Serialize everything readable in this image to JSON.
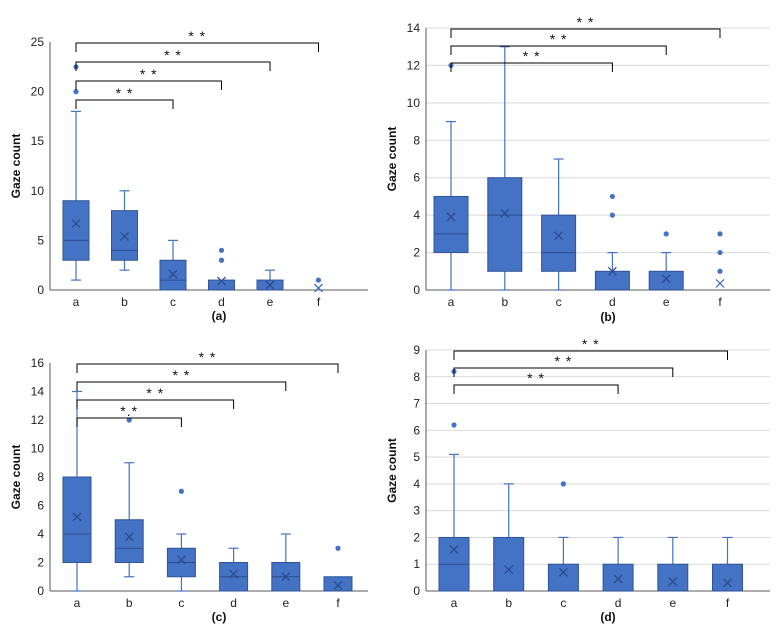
{
  "colors": {
    "box": "#4472C4",
    "box_edge": "#2F5597",
    "bracket": "#000000",
    "axis": "#595959",
    "grid": "#D9D9D9"
  },
  "chart_data": [
    {
      "type": "boxplot",
      "caption": "(a)",
      "ylabel": "Gaze count",
      "ylim": [
        0,
        25
      ],
      "ticks": [
        0,
        5,
        10,
        15,
        20,
        25
      ],
      "grid": false,
      "categories": [
        "a",
        "b",
        "c",
        "d",
        "e",
        "f"
      ],
      "boxes": [
        {
          "name": "a",
          "whisker_low": 1,
          "q1": 3,
          "median": 5,
          "q3": 9,
          "whisker_high": 18,
          "mean": 6.7,
          "outliers": [
            20,
            22.5
          ]
        },
        {
          "name": "b",
          "whisker_low": 2,
          "q1": 3,
          "median": 4,
          "q3": 8,
          "whisker_high": 10,
          "mean": 5.4,
          "outliers": []
        },
        {
          "name": "c",
          "whisker_low": 0,
          "q1": 0,
          "median": 1,
          "q3": 3,
          "whisker_high": 5,
          "mean": 1.6,
          "outliers": []
        },
        {
          "name": "d",
          "whisker_low": 0,
          "q1": 0,
          "median": 0,
          "q3": 1,
          "whisker_high": 1,
          "mean": 0.9,
          "outliers": [
            3,
            4
          ]
        },
        {
          "name": "e",
          "whisker_low": 0,
          "q1": 0,
          "median": 0,
          "q3": 1,
          "whisker_high": 2,
          "mean": 0.5,
          "outliers": []
        },
        {
          "name": "f",
          "whisker_low": 0,
          "q1": 0,
          "median": 0,
          "q3": 0,
          "whisker_high": 0,
          "mean": 0.2,
          "outliers": [
            1
          ]
        }
      ],
      "significance": [
        {
          "from": "a",
          "to": "c",
          "label": "* *"
        },
        {
          "from": "a",
          "to": "d",
          "label": "* *"
        },
        {
          "from": "a",
          "to": "e",
          "label": "* *"
        },
        {
          "from": "a",
          "to": "f",
          "label": "* *"
        }
      ]
    },
    {
      "type": "boxplot",
      "caption": "(b)",
      "ylabel": "Gaze count",
      "ylim": [
        0,
        14
      ],
      "ticks": [
        0,
        2,
        4,
        6,
        8,
        10,
        12,
        14
      ],
      "grid": true,
      "categories": [
        "a",
        "b",
        "c",
        "d",
        "e",
        "f"
      ],
      "boxes": [
        {
          "name": "a",
          "whisker_low": 0,
          "q1": 2,
          "median": 3,
          "q3": 5,
          "whisker_high": 9,
          "mean": 3.9,
          "outliers": [
            12
          ]
        },
        {
          "name": "b",
          "whisker_low": 0,
          "q1": 1,
          "median": 4,
          "q3": 6,
          "whisker_high": 13,
          "mean": 4.1,
          "outliers": []
        },
        {
          "name": "c",
          "whisker_low": 0,
          "q1": 1,
          "median": 2,
          "q3": 4,
          "whisker_high": 7,
          "mean": 2.9,
          "outliers": []
        },
        {
          "name": "d",
          "whisker_low": 0,
          "q1": 0,
          "median": 0,
          "q3": 1,
          "whisker_high": 2,
          "mean": 1,
          "outliers": [
            4,
            5
          ]
        },
        {
          "name": "e",
          "whisker_low": 0,
          "q1": 0,
          "median": 0,
          "q3": 1,
          "whisker_high": 2,
          "mean": 0.6,
          "outliers": [
            3
          ]
        },
        {
          "name": "f",
          "whisker_low": 0,
          "q1": 0,
          "median": 0,
          "q3": 0,
          "whisker_high": 0,
          "mean": 0.35,
          "outliers": [
            1,
            2,
            3
          ]
        }
      ],
      "significance": [
        {
          "from": "a",
          "to": "d",
          "label": "* *"
        },
        {
          "from": "a",
          "to": "e",
          "label": "* *"
        },
        {
          "from": "a",
          "to": "f",
          "label": "* *"
        }
      ]
    },
    {
      "type": "boxplot",
      "caption": "(c)",
      "ylabel": "Gaze count",
      "ylim": [
        0,
        16
      ],
      "ticks": [
        0,
        2,
        4,
        6,
        8,
        10,
        12,
        14,
        16
      ],
      "grid": false,
      "categories": [
        "a",
        "b",
        "c",
        "d",
        "e",
        "f"
      ],
      "boxes": [
        {
          "name": "a",
          "whisker_low": 0,
          "q1": 2,
          "median": 4,
          "q3": 8,
          "whisker_high": 14,
          "mean": 5.2,
          "outliers": []
        },
        {
          "name": "b",
          "whisker_low": 1,
          "q1": 2,
          "median": 3,
          "q3": 5,
          "whisker_high": 9,
          "mean": 3.8,
          "outliers": [
            12
          ]
        },
        {
          "name": "c",
          "whisker_low": 0,
          "q1": 1,
          "median": 2,
          "q3": 3,
          "whisker_high": 4,
          "mean": 2.2,
          "outliers": [
            7
          ]
        },
        {
          "name": "d",
          "whisker_low": 0,
          "q1": 0,
          "median": 1,
          "q3": 2,
          "whisker_high": 3,
          "mean": 1.2,
          "outliers": []
        },
        {
          "name": "e",
          "whisker_low": 0,
          "q1": 0,
          "median": 1,
          "q3": 2,
          "whisker_high": 4,
          "mean": 1,
          "outliers": []
        },
        {
          "name": "f",
          "whisker_low": 0,
          "q1": 0,
          "median": 0,
          "q3": 1,
          "whisker_high": 1,
          "mean": 0.4,
          "outliers": [
            3
          ]
        }
      ],
      "significance": [
        {
          "from": "a",
          "to": "c",
          "label": "*.*"
        },
        {
          "from": "a",
          "to": "d",
          "label": "* *"
        },
        {
          "from": "a",
          "to": "e",
          "label": "* *"
        },
        {
          "from": "a",
          "to": "f",
          "label": "* *"
        }
      ]
    },
    {
      "type": "boxplot",
      "caption": "(d)",
      "ylabel": "Gaze count",
      "ylim": [
        0,
        9
      ],
      "ticks": [
        0,
        1,
        2,
        3,
        4,
        5,
        6,
        7,
        8,
        9
      ],
      "grid": true,
      "categories": [
        "a",
        "b",
        "c",
        "d",
        "e",
        "f"
      ],
      "boxes": [
        {
          "name": "a",
          "whisker_low": 0,
          "q1": 0,
          "median": 1,
          "q3": 2,
          "whisker_high": 5.1,
          "mean": 1.55,
          "outliers": [
            6.2,
            8.2
          ]
        },
        {
          "name": "b",
          "whisker_low": 0,
          "q1": 0,
          "median": 0,
          "q3": 2,
          "whisker_high": 4,
          "mean": 0.8,
          "outliers": []
        },
        {
          "name": "c",
          "whisker_low": 0,
          "q1": 0,
          "median": 0,
          "q3": 1,
          "whisker_high": 2,
          "mean": 0.7,
          "outliers": [
            4
          ]
        },
        {
          "name": "d",
          "whisker_low": 0,
          "q1": 0,
          "median": 0,
          "q3": 1,
          "whisker_high": 2,
          "mean": 0.45,
          "outliers": []
        },
        {
          "name": "e",
          "whisker_low": 0,
          "q1": 0,
          "median": 0,
          "q3": 1,
          "whisker_high": 2,
          "mean": 0.35,
          "outliers": []
        },
        {
          "name": "f",
          "whisker_low": 0,
          "q1": 0,
          "median": 0,
          "q3": 1,
          "whisker_high": 2,
          "mean": 0.3,
          "outliers": []
        }
      ],
      "significance": [
        {
          "from": "a",
          "to": "d",
          "label": "* *"
        },
        {
          "from": "a",
          "to": "e",
          "label": "* *"
        },
        {
          "from": "a",
          "to": "f",
          "label": "* *"
        }
      ]
    }
  ]
}
